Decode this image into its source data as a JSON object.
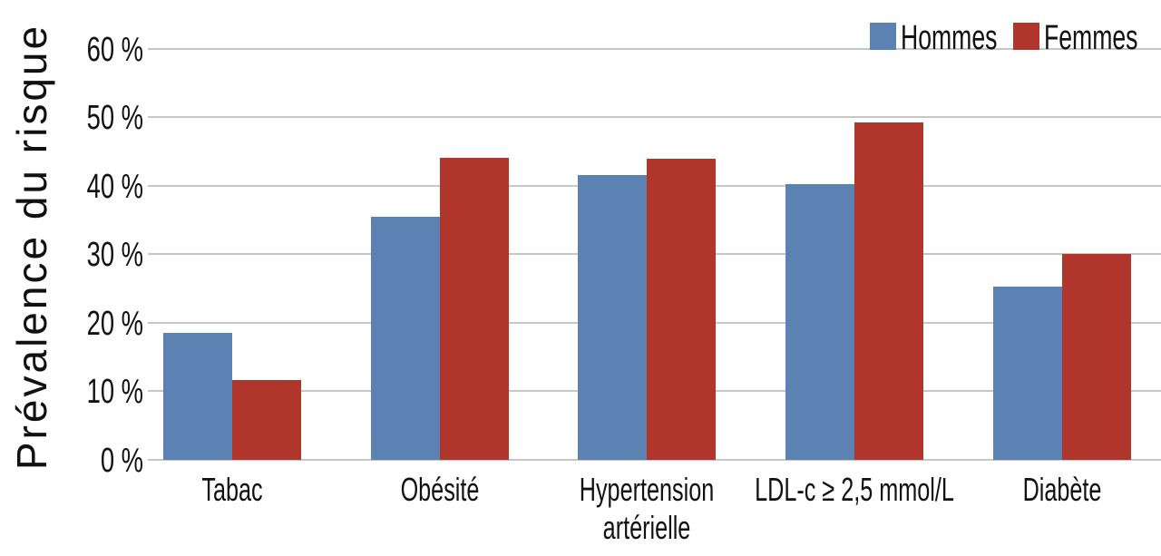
{
  "chart_data": {
    "type": "bar",
    "title": "",
    "ylabel": "Prévalence du risque",
    "xlabel": "",
    "categories": [
      "Tabac",
      "Obésité",
      "Hypertension\nartérielle",
      "LDL-c ≥ 2,5 mmol/L",
      "Diabète"
    ],
    "series": [
      {
        "name": "Hommes",
        "color": "#5b82b3",
        "values": [
          18.5,
          35.5,
          41.6,
          40.2,
          25.3
        ]
      },
      {
        "name": "Femmes",
        "color": "#b0352b",
        "values": [
          11.6,
          44.1,
          43.9,
          49.2,
          30.0
        ]
      }
    ],
    "ylim": [
      0,
      60
    ],
    "yticks": [
      0,
      10,
      20,
      30,
      40,
      50,
      60
    ],
    "ytick_suffix": " %",
    "grid": true,
    "gridline_color": "#c6c6c6",
    "legend_position": "top-right",
    "background": "#ffffff",
    "text_color": "#111111"
  }
}
